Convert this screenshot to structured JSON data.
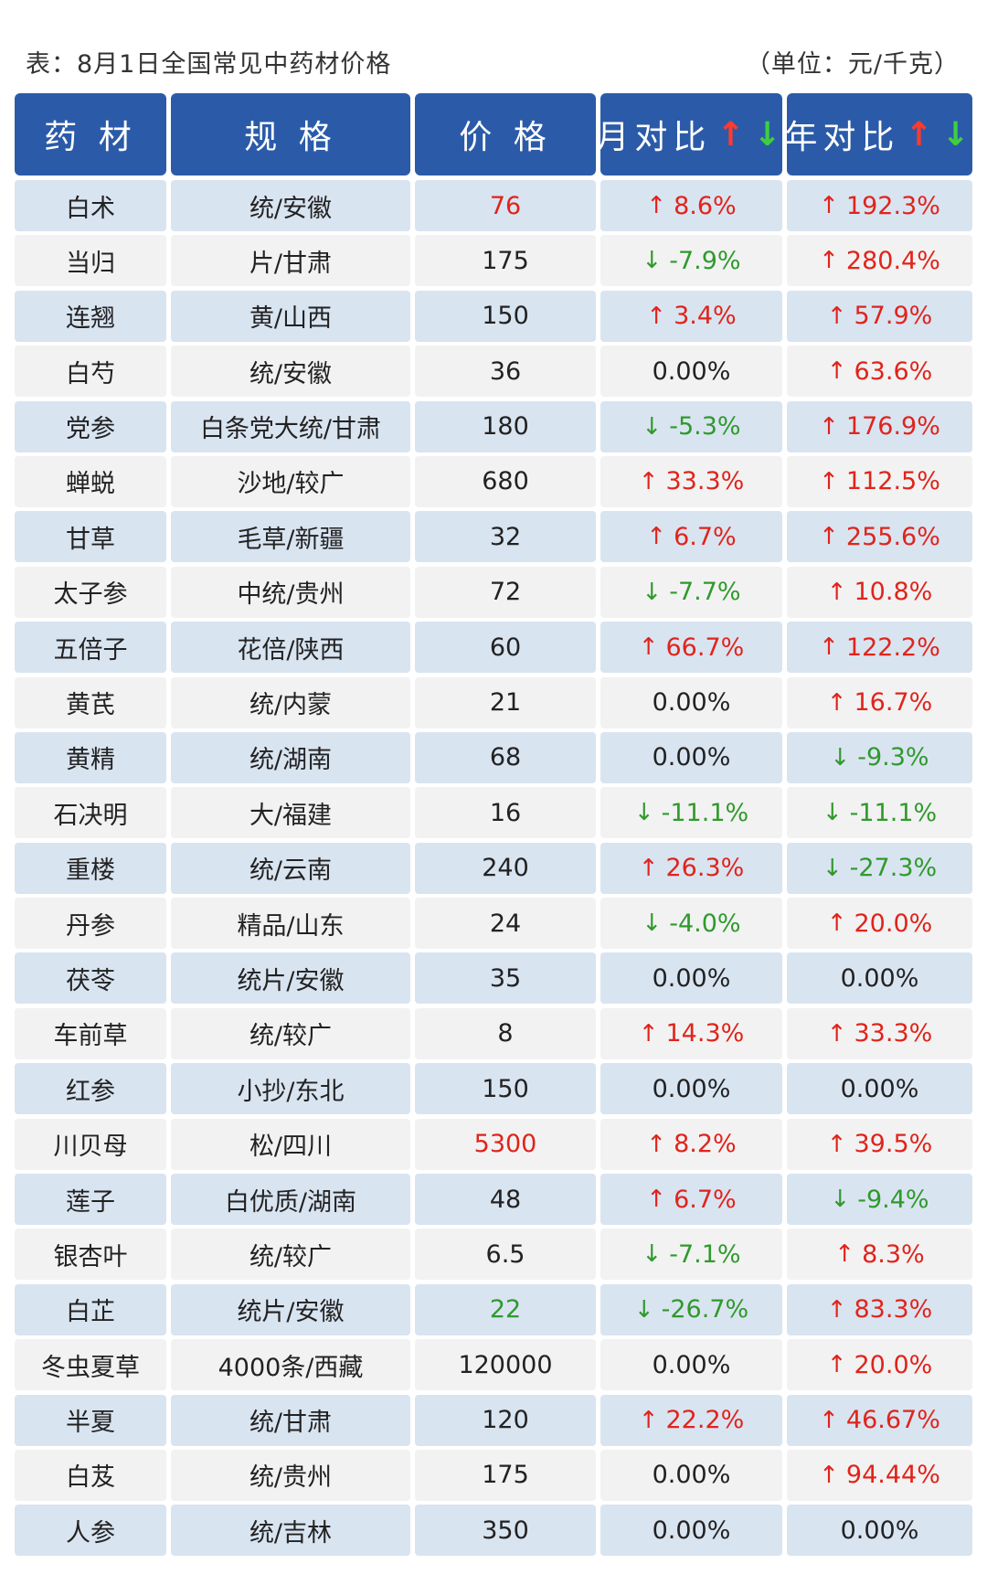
{
  "caption": {
    "title": "表：8月1日全国常见中药材价格",
    "unit": "（单位：元/千克）"
  },
  "colors": {
    "header_bg": "#2b5ba8",
    "row_blue": "#d9e4f1",
    "row_gray": "#f2f2f2",
    "up": "#e0241b",
    "down": "#2f9a2b"
  },
  "header": {
    "col1": "药 材",
    "col2": "规 格",
    "col3": "价 格",
    "col4": "月对比",
    "col5": "年对比",
    "up_arrow": "↑",
    "down_arrow": "↓"
  },
  "rows": [
    {
      "name": "白术",
      "spec": "统/安徽",
      "price": "76",
      "price_color": "up",
      "mom": "8.6%",
      "mom_dir": "up",
      "yoy": "192.3%",
      "yoy_dir": "up"
    },
    {
      "name": "当归",
      "spec": "片/甘肃",
      "price": "175",
      "price_color": "",
      "mom": "-7.9%",
      "mom_dir": "down",
      "yoy": "280.4%",
      "yoy_dir": "up"
    },
    {
      "name": "连翘",
      "spec": "黄/山西",
      "price": "150",
      "price_color": "",
      "mom": "3.4%",
      "mom_dir": "up",
      "yoy": "57.9%",
      "yoy_dir": "up"
    },
    {
      "name": "白芍",
      "spec": "统/安徽",
      "price": "36",
      "price_color": "",
      "mom": "0.00%",
      "mom_dir": "flat",
      "yoy": "63.6%",
      "yoy_dir": "up"
    },
    {
      "name": "党参",
      "spec": "白条党大统/甘肃",
      "price": "180",
      "price_color": "",
      "mom": "-5.3%",
      "mom_dir": "down",
      "yoy": "176.9%",
      "yoy_dir": "up"
    },
    {
      "name": "蝉蜕",
      "spec": "沙地/较广",
      "price": "680",
      "price_color": "",
      "mom": "33.3%",
      "mom_dir": "up",
      "yoy": "112.5%",
      "yoy_dir": "up"
    },
    {
      "name": "甘草",
      "spec": "毛草/新疆",
      "price": "32",
      "price_color": "",
      "mom": "6.7%",
      "mom_dir": "up",
      "yoy": "255.6%",
      "yoy_dir": "up"
    },
    {
      "name": "太子参",
      "spec": "中统/贵州",
      "price": "72",
      "price_color": "",
      "mom": "-7.7%",
      "mom_dir": "down",
      "yoy": "10.8%",
      "yoy_dir": "up"
    },
    {
      "name": "五倍子",
      "spec": "花倍/陕西",
      "price": "60",
      "price_color": "",
      "mom": "66.7%",
      "mom_dir": "up",
      "yoy": "122.2%",
      "yoy_dir": "up"
    },
    {
      "name": "黄芪",
      "spec": "统/内蒙",
      "price": "21",
      "price_color": "",
      "mom": "0.00%",
      "mom_dir": "flat",
      "yoy": "16.7%",
      "yoy_dir": "up"
    },
    {
      "name": "黄精",
      "spec": "统/湖南",
      "price": "68",
      "price_color": "",
      "mom": "0.00%",
      "mom_dir": "flat",
      "yoy": "-9.3%",
      "yoy_dir": "down"
    },
    {
      "name": "石决明",
      "spec": "大/福建",
      "price": "16",
      "price_color": "",
      "mom": "-11.1%",
      "mom_dir": "down",
      "yoy": "-11.1%",
      "yoy_dir": "down"
    },
    {
      "name": "重楼",
      "spec": "统/云南",
      "price": "240",
      "price_color": "",
      "mom": "26.3%",
      "mom_dir": "up",
      "yoy": "-27.3%",
      "yoy_dir": "down"
    },
    {
      "name": "丹参",
      "spec": "精品/山东",
      "price": "24",
      "price_color": "",
      "mom": "-4.0%",
      "mom_dir": "down",
      "yoy": "20.0%",
      "yoy_dir": "up"
    },
    {
      "name": "茯苓",
      "spec": "统片/安徽",
      "price": "35",
      "price_color": "",
      "mom": "0.00%",
      "mom_dir": "flat",
      "yoy": "0.00%",
      "yoy_dir": "flat"
    },
    {
      "name": "车前草",
      "spec": "统/较广",
      "price": "8",
      "price_color": "",
      "mom": "14.3%",
      "mom_dir": "up",
      "yoy": "33.3%",
      "yoy_dir": "up"
    },
    {
      "name": "红参",
      "spec": "小抄/东北",
      "price": "150",
      "price_color": "",
      "mom": "0.00%",
      "mom_dir": "flat",
      "yoy": "0.00%",
      "yoy_dir": "flat"
    },
    {
      "name": "川贝母",
      "spec": "松/四川",
      "price": "5300",
      "price_color": "up",
      "mom": "8.2%",
      "mom_dir": "up",
      "yoy": "39.5%",
      "yoy_dir": "up"
    },
    {
      "name": "莲子",
      "spec": "白优质/湖南",
      "price": "48",
      "price_color": "",
      "mom": "6.7%",
      "mom_dir": "up",
      "yoy": "-9.4%",
      "yoy_dir": "down"
    },
    {
      "name": "银杏叶",
      "spec": "统/较广",
      "price": "6.5",
      "price_color": "",
      "mom": "-7.1%",
      "mom_dir": "down",
      "yoy": "8.3%",
      "yoy_dir": "up"
    },
    {
      "name": "白芷",
      "spec": "统片/安徽",
      "price": "22",
      "price_color": "down",
      "mom": "-26.7%",
      "mom_dir": "down",
      "yoy": "83.3%",
      "yoy_dir": "up"
    },
    {
      "name": "冬虫夏草",
      "spec": "4000条/西藏",
      "price": "120000",
      "price_color": "",
      "mom": "0.00%",
      "mom_dir": "flat",
      "yoy": "20.0%",
      "yoy_dir": "up"
    },
    {
      "name": "半夏",
      "spec": "统/甘肃",
      "price": "120",
      "price_color": "",
      "mom": "22.2%",
      "mom_dir": "up",
      "yoy": "46.67%",
      "yoy_dir": "up"
    },
    {
      "name": "白芨",
      "spec": "统/贵州",
      "price": "175",
      "price_color": "",
      "mom": "0.00%",
      "mom_dir": "flat",
      "yoy": "94.44%",
      "yoy_dir": "up"
    },
    {
      "name": "人参",
      "spec": "统/吉林",
      "price": "350",
      "price_color": "",
      "mom": "0.00%",
      "mom_dir": "flat",
      "yoy": "0.00%",
      "yoy_dir": "flat"
    }
  ]
}
